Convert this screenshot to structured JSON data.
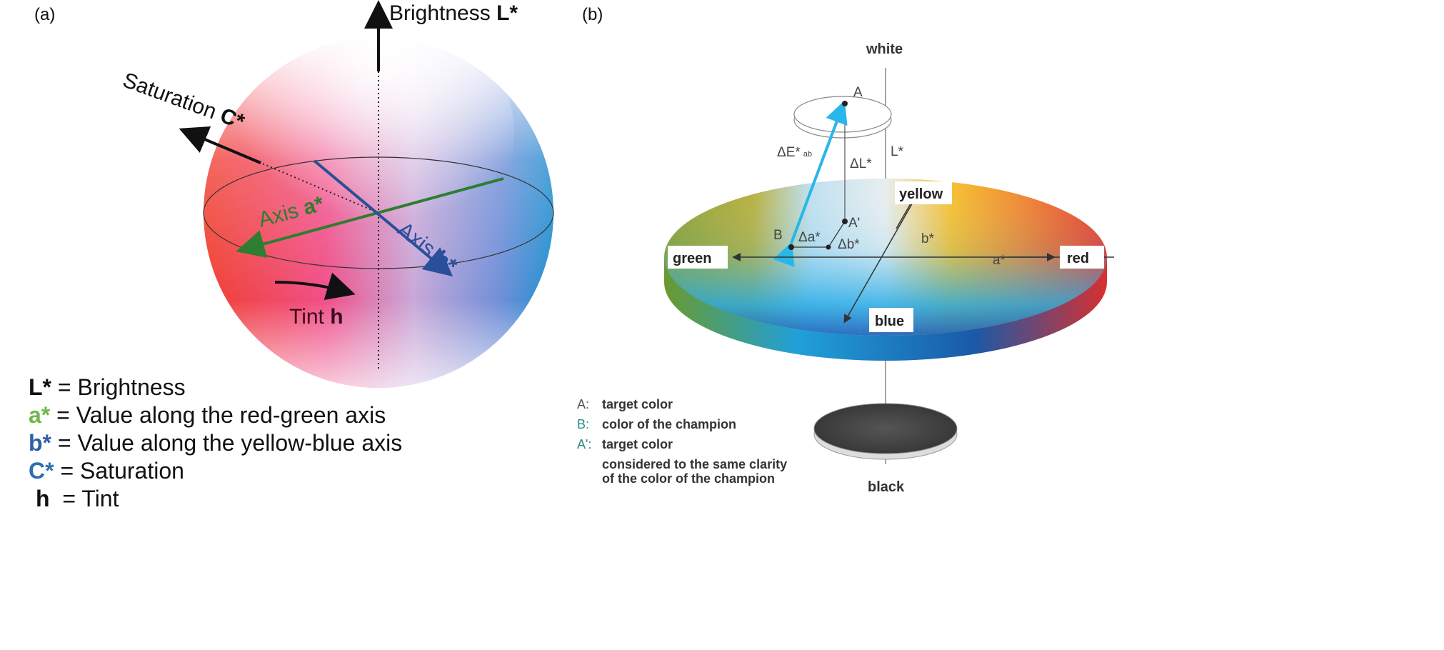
{
  "panel_a": {
    "label": "(a)",
    "brightness_axis": {
      "text": "Brightness ",
      "symbol": "L*"
    },
    "saturation_axis": {
      "text": "Saturation ",
      "symbol": "C*"
    },
    "axis_a": {
      "text": "Axis ",
      "symbol": "a*"
    },
    "axis_b": {
      "text": "Axis ",
      "symbol": "b*"
    },
    "tint": {
      "text": "Tint ",
      "symbol": "h"
    },
    "legend": [
      {
        "symbol": "L*",
        "text": " = Brightness",
        "color": "#111111"
      },
      {
        "symbol": "a*",
        "text": " = Value along the red-green axis",
        "color": "#6cb84a"
      },
      {
        "symbol": "b*",
        "text": " = Value along the yellow-blue axis",
        "color": "#2d5fa8"
      },
      {
        "symbol": "C*",
        "text": " = Saturation",
        "color": "#2d6fb0"
      },
      {
        "symbol": "h",
        "text": "  = Tint",
        "color": "#111111"
      }
    ],
    "colors": {
      "axis_a": "#2e7d32",
      "axis_b": "#2a4f9a"
    }
  },
  "panel_b": {
    "label": "(b)",
    "white": "white",
    "black": "black",
    "green": "green",
    "red": "red",
    "yellow": "yellow",
    "blue": "blue",
    "point_a": "A",
    "point_b": "B",
    "point_a_prime": "A'",
    "delta_e": "ΔE*",
    "delta_e_sub": "ab",
    "delta_l": "ΔL*",
    "l_star": "L*",
    "a_star": "a*",
    "b_star": "b*",
    "delta_a": "Δa*",
    "delta_b": "Δb*",
    "legend": [
      {
        "key": "A:",
        "text": "target color"
      },
      {
        "key": "B:",
        "text": "color of the champion"
      },
      {
        "key": "A':",
        "text": "target color"
      }
    ],
    "legend_extra": [
      "considered to the same clarity",
      "of the color of the champion"
    ],
    "colors": {
      "delta_e_arrow": "#29b6e8"
    }
  }
}
